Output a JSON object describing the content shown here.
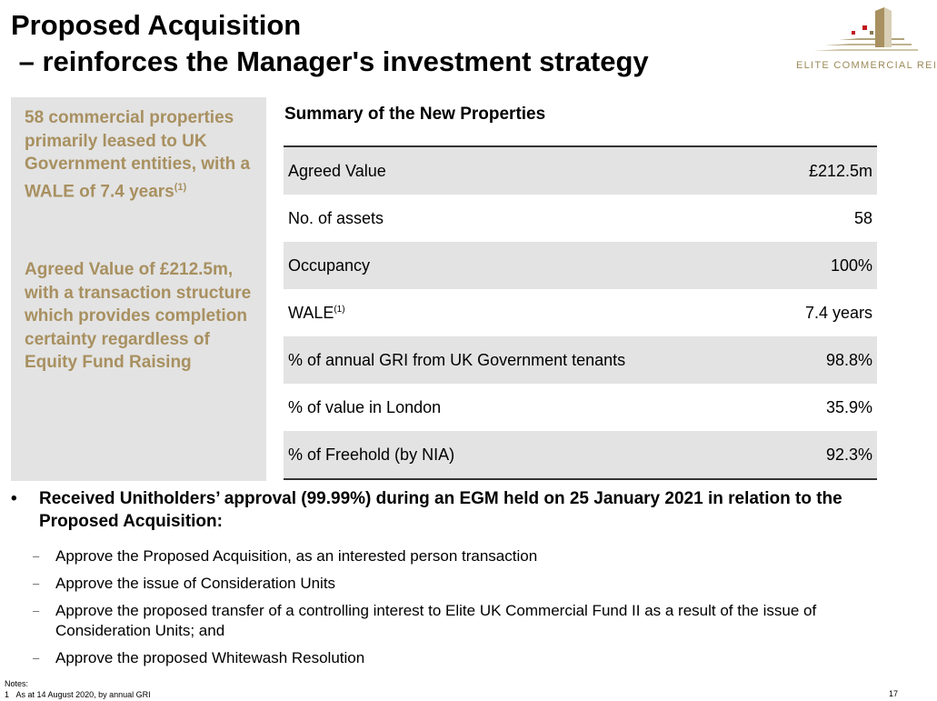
{
  "header": {
    "title_line1": "Proposed Acquisition",
    "title_line2": " – reinforces the Manager's investment strategy",
    "logo_text": "ELITE COMMERCIAL REIT"
  },
  "highlights": {
    "h1_text": "58 commercial properties primarily leased to UK Government entities, with a WALE of 7.4 years",
    "h1_note": "(1)",
    "h2_text": "Agreed Value of £212.5m, with a transaction structure which provides completion certainty regardless of Equity Fund Raising"
  },
  "summary": {
    "title": "Summary of the New Properties",
    "rows": [
      {
        "label": "Agreed Value",
        "value": "£212.5m"
      },
      {
        "label": "No. of assets",
        "value": "58"
      },
      {
        "label": "Occupancy",
        "value": "100%"
      },
      {
        "label": "WALE",
        "note": "(1)",
        "value": "7.4 years"
      },
      {
        "label": "% of annual GRI from UK Government tenants",
        "value": "98.8%"
      },
      {
        "label": "% of value in London",
        "value": "35.9%"
      },
      {
        "label": "% of Freehold (by NIA)",
        "value": "92.3%"
      }
    ]
  },
  "approval": {
    "bullet_symbol": "•",
    "text": "Received Unitholders’ approval (99.99%) during an EGM held on 25 January 2021 in relation to the Proposed Acquisition:",
    "dash_symbol": "–",
    "items": [
      "Approve the Proposed Acquisition, as an interested person transaction",
      "Approve the issue of Consideration Units",
      "Approve the proposed transfer of a controlling interest to Elite UK Commercial Fund II as a result of the issue of Consideration Units;  and",
      "Approve the proposed Whitewash Resolution"
    ]
  },
  "notes": {
    "heading": "Notes:",
    "num": "1",
    "text": "As at 14 August 2020, by annual GRI"
  },
  "page_number": "17",
  "colors": {
    "gold": "#a89060",
    "panel_grey": "#e3e3e3",
    "logo_red": "#c0161d"
  }
}
